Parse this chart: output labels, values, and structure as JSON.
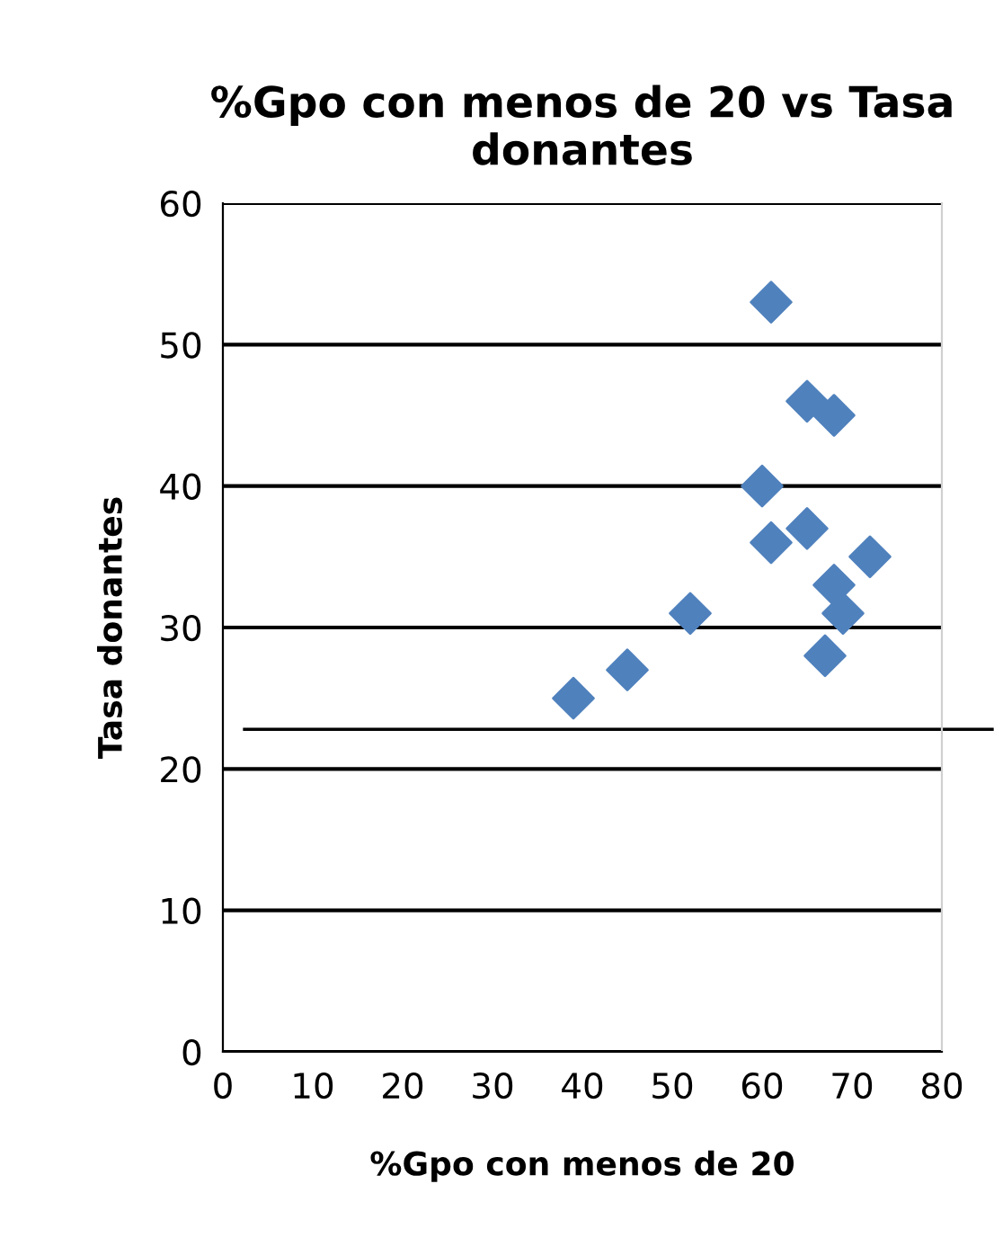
{
  "chart_data": {
    "type": "scatter",
    "title": "%Gpo con menos de 20 vs Tasa donantes",
    "xlabel": "%Gpo con menos de 20",
    "ylabel": "Tasa donantes",
    "x": [
      39,
      45,
      52,
      61,
      65,
      68,
      60,
      65,
      61,
      72,
      68,
      69,
      67
    ],
    "series": [
      {
        "color": "#4f81bd",
        "values": [
          25,
          27,
          31,
          53,
          46,
          45,
          40,
          37,
          36,
          35,
          33,
          31,
          28
        ]
      }
    ],
    "xlim": [
      0,
      80
    ],
    "xticks": [
      0,
      10,
      20,
      30,
      40,
      50,
      60,
      70,
      80
    ],
    "ylim": [
      0,
      60
    ],
    "yticks": [
      0,
      10,
      20,
      30,
      40,
      50,
      60
    ],
    "grid": "y",
    "marker": "diamond",
    "ref_lines": [
      {
        "axis": "y",
        "value": 22.8,
        "color": "#000000"
      }
    ]
  }
}
